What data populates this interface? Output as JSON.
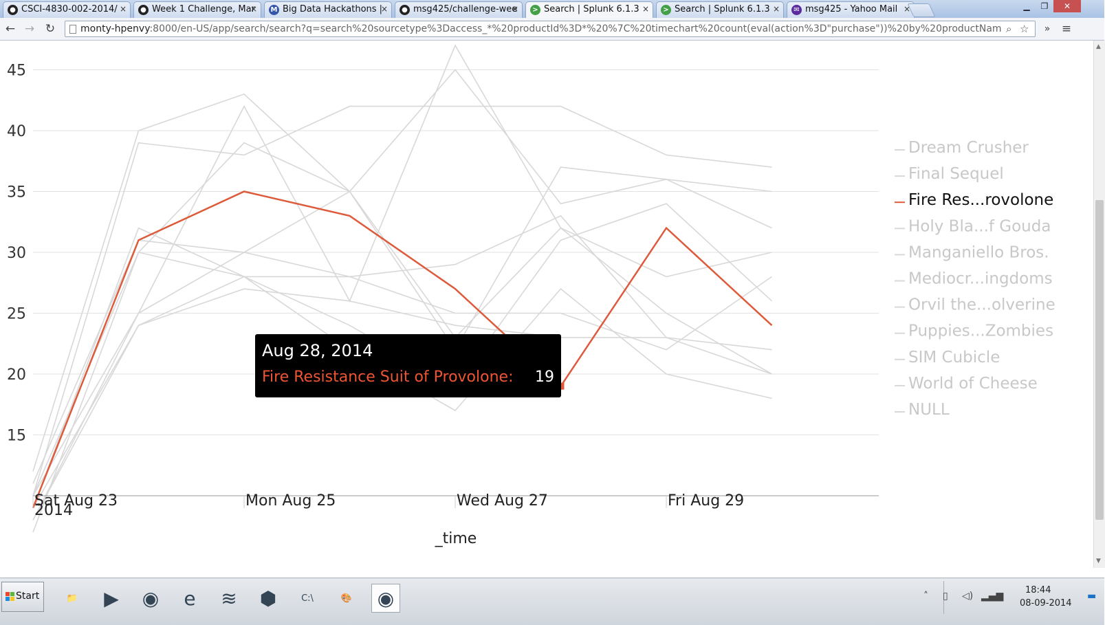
{
  "tabs": [
    {
      "label": "CSCI-4830-002-2014/",
      "icon": "github-icon",
      "fav": "●",
      "color": "#222222",
      "active": false
    },
    {
      "label": "Week 1 Challenge, Mar",
      "icon": "github-icon",
      "fav": "●",
      "color": "#222222",
      "active": false
    },
    {
      "label": "Big Data Hackathons |",
      "icon": "m-logo-icon",
      "fav": "M",
      "color": "#3355aa",
      "active": false
    },
    {
      "label": "msg425/challenge-wee",
      "icon": "github-icon",
      "fav": "●",
      "color": "#222222",
      "active": false
    },
    {
      "label": "Search | Splunk 6.1.3",
      "icon": "splunk-icon",
      "fav": ">",
      "color": "#43a047",
      "active": true
    },
    {
      "label": "Search | Splunk 6.1.3",
      "icon": "splunk-icon",
      "fav": ">",
      "color": "#43a047",
      "active": false
    },
    {
      "label": "msg425 - Yahoo Mail",
      "icon": "mail-icon",
      "fav": "✉",
      "color": "#5b2a9e",
      "active": false
    }
  ],
  "toolbar": {
    "url_host": "monty-hpenvy",
    "url_rest": ":8000/en-US/app/search/search?q=search%20sourcetype%3Daccess_*%20productId%3D*%20%7C%20timechart%20count(eval(action%3D\"purchase\"))%20by%20productNam"
  },
  "chart_data": {
    "type": "line",
    "x": [
      "2014-08-23",
      "2014-08-24",
      "2014-08-25",
      "2014-08-26",
      "2014-08-27",
      "2014-08-28",
      "2014-08-29",
      "2014-08-30"
    ],
    "xtick_labels": [
      {
        "label": "Sat Aug 23",
        "sub": "2014",
        "x": "2014-08-23"
      },
      {
        "label": "Mon Aug 25",
        "sub": "",
        "x": "2014-08-25"
      },
      {
        "label": "Wed Aug 27",
        "sub": "",
        "x": "2014-08-27"
      },
      {
        "label": "Fri Aug 29",
        "sub": "",
        "x": "2014-08-29"
      }
    ],
    "yticks": [
      15,
      20,
      25,
      30,
      35,
      40,
      45
    ],
    "ylim": [
      10,
      48
    ],
    "xlabel": "_time",
    "ylabel": "",
    "legend_position": "right",
    "highlight_color": "#dd5a3a",
    "muted_color": "#d8d8d8",
    "series": [
      {
        "name": "Dream Crusher",
        "legend": "Dream Crusher",
        "values": [
          12,
          40,
          43,
          35,
          45,
          34,
          36,
          32
        ]
      },
      {
        "name": "Final Sequel",
        "legend": "Final Sequel",
        "values": [
          10,
          39,
          38,
          42,
          42,
          42,
          38,
          37
        ]
      },
      {
        "name": "Fire Resistance Suit of Provolone",
        "legend": "Fire Res...rovolone",
        "values": [
          9,
          31,
          35,
          33,
          27,
          19,
          32,
          24
        ]
      },
      {
        "name": "Holy Blade of Gouda",
        "legend": "Holy Bla...f Gouda",
        "values": [
          10,
          30,
          39,
          35,
          22,
          37,
          36,
          35
        ]
      },
      {
        "name": "Manganiello Bros.",
        "legend": "Manganiello Bros.",
        "values": [
          8,
          25,
          42,
          26,
          47,
          32,
          28,
          30
        ]
      },
      {
        "name": "Mediocre Kingdoms",
        "legend": "Mediocr...ingdoms",
        "values": [
          9,
          32,
          28,
          24,
          19,
          31,
          34,
          26
        ]
      },
      {
        "name": "Orvil the Wolverine",
        "legend": "Orvil the...olverine",
        "values": [
          11,
          31,
          30,
          35,
          23,
          32,
          25,
          20
        ]
      },
      {
        "name": "Puppies vs. Zombies",
        "legend": "Puppies...Zombies",
        "values": [
          9,
          24,
          28,
          28,
          29,
          33,
          23,
          22
        ]
      },
      {
        "name": "SIM Cubicle",
        "legend": "SIM Cubicle",
        "values": [
          8,
          24,
          27,
          26,
          24,
          23,
          23,
          20
        ]
      },
      {
        "name": "World of Cheese",
        "legend": "World of Cheese",
        "values": [
          7,
          30,
          28,
          22,
          17,
          27,
          20,
          18
        ]
      },
      {
        "name": "NULL",
        "legend": "NULL",
        "values": [
          10,
          25,
          30,
          28,
          25,
          25,
          22,
          28
        ]
      }
    ],
    "highlight_index": 2,
    "hover_point": {
      "x": "2014-08-28",
      "value": 19
    }
  },
  "tooltip": {
    "date": "Aug 28, 2014",
    "series": "Fire Resistance Suit of Provolone:",
    "value": "19"
  },
  "taskbar": {
    "start_label": "Start",
    "apps": [
      {
        "name": "file-explorer-icon",
        "glyph": "📁"
      },
      {
        "name": "media-player-icon",
        "glyph": "▶"
      },
      {
        "name": "chrome-icon",
        "glyph": "◉"
      },
      {
        "name": "internet-explorer-icon",
        "glyph": "e"
      },
      {
        "name": "spotify-icon",
        "glyph": "≋"
      },
      {
        "name": "virtualbox-icon",
        "glyph": "⬢"
      },
      {
        "name": "cmd-icon",
        "glyph": "C:\\"
      },
      {
        "name": "paint-icon",
        "glyph": "🎨"
      },
      {
        "name": "chrome-active-icon",
        "glyph": "◉"
      }
    ],
    "time": "18:44",
    "date": "08-09-2014"
  }
}
